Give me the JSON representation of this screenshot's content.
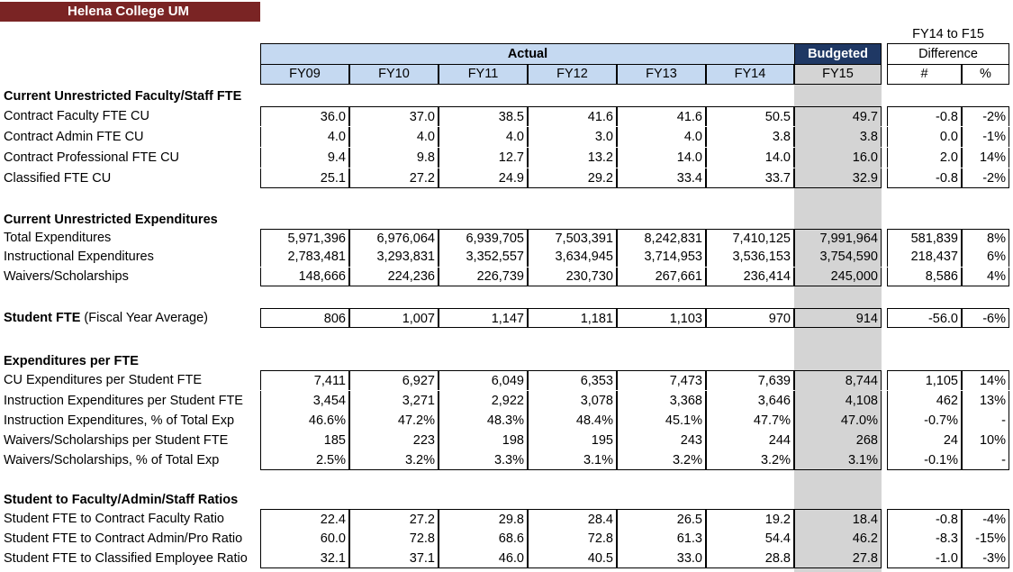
{
  "title": "Helena College UM",
  "header": {
    "actual_label": "Actual",
    "budgeted_label": "Budgeted",
    "diff_top": "FY14 to F15",
    "diff_label": "Difference",
    "columns": [
      "FY09",
      "FY10",
      "FY11",
      "FY12",
      "FY13",
      "FY14",
      "FY15"
    ],
    "diff_cols": [
      "#",
      "%"
    ]
  },
  "sections": [
    {
      "title": "Current Unrestricted Faculty/Staff FTE",
      "rows": [
        {
          "label": "Contract Faculty FTE CU",
          "values": [
            "36.0",
            "37.0",
            "38.5",
            "41.6",
            "41.6",
            "50.5",
            "49.7"
          ],
          "diff": [
            "-0.8",
            "-2%"
          ]
        },
        {
          "label": "Contract Admin FTE CU",
          "values": [
            "4.0",
            "4.0",
            "4.0",
            "3.0",
            "4.0",
            "3.8",
            "3.8"
          ],
          "diff": [
            "0.0",
            "-1%"
          ]
        },
        {
          "label": "Contract Professional FTE CU",
          "values": [
            "9.4",
            "9.8",
            "12.7",
            "13.2",
            "14.0",
            "14.0",
            "16.0"
          ],
          "diff": [
            "2.0",
            "14%"
          ]
        },
        {
          "label": "Classified FTE CU",
          "values": [
            "25.1",
            "27.2",
            "24.9",
            "29.2",
            "33.4",
            "33.7",
            "32.9"
          ],
          "diff": [
            "-0.8",
            "-2%"
          ]
        }
      ]
    },
    {
      "title": "Current Unrestricted Expenditures",
      "rows": [
        {
          "label": "Total Expenditures",
          "values": [
            "5,971,396",
            "6,976,064",
            "6,939,705",
            "7,503,391",
            "8,242,831",
            "7,410,125",
            "7,991,964"
          ],
          "diff": [
            "581,839",
            "8%"
          ]
        },
        {
          "label": "Instructional Expenditures",
          "values": [
            "2,783,481",
            "3,293,831",
            "3,352,557",
            "3,634,945",
            "3,714,953",
            "3,536,153",
            "3,754,590"
          ],
          "diff": [
            "218,437",
            "6%"
          ]
        },
        {
          "label": "Waivers/Scholarships",
          "values": [
            "148,666",
            "224,236",
            "226,739",
            "230,730",
            "267,661",
            "236,414",
            "245,000"
          ],
          "diff": [
            "8,586",
            "4%"
          ]
        }
      ]
    },
    {
      "title": "",
      "rows": [
        {
          "label": "Student FTE",
          "label_suffix": " (Fiscal Year Average)",
          "values": [
            "806",
            "1,007",
            "1,147",
            "1,181",
            "1,103",
            "970",
            "914"
          ],
          "diff": [
            "-56.0",
            "-6%"
          ]
        }
      ]
    },
    {
      "title": "Expenditures per FTE",
      "rows": [
        {
          "label": "CU Expenditures per Student FTE",
          "values": [
            "7,411",
            "6,927",
            "6,049",
            "6,353",
            "7,473",
            "7,639",
            "8,744"
          ],
          "diff": [
            "1,105",
            "14%"
          ]
        },
        {
          "label": "Instruction Expenditures per Student FTE",
          "values": [
            "3,454",
            "3,271",
            "2,922",
            "3,078",
            "3,368",
            "3,646",
            "4,108"
          ],
          "diff": [
            "462",
            "13%"
          ]
        },
        {
          "label": "Instruction Expenditures, % of Total Exp",
          "values": [
            "46.6%",
            "47.2%",
            "48.3%",
            "48.4%",
            "45.1%",
            "47.7%",
            "47.0%"
          ],
          "diff": [
            "-0.7%",
            "-"
          ]
        },
        {
          "label": "Waivers/Scholarships per Student FTE",
          "values": [
            "185",
            "223",
            "198",
            "195",
            "243",
            "244",
            "268"
          ],
          "diff": [
            "24",
            "10%"
          ]
        },
        {
          "label": "Waivers/Scholarships, % of Total Exp",
          "values": [
            "2.5%",
            "3.2%",
            "3.3%",
            "3.1%",
            "3.2%",
            "3.2%",
            "3.1%"
          ],
          "diff": [
            "-0.1%",
            "-"
          ]
        }
      ]
    },
    {
      "title": "Student to Faculty/Admin/Staff Ratios",
      "rows": [
        {
          "label": "Student FTE to Contract Faculty Ratio",
          "values": [
            "22.4",
            "27.2",
            "29.8",
            "28.4",
            "26.5",
            "19.2",
            "18.4"
          ],
          "diff": [
            "-0.8",
            "-4%"
          ]
        },
        {
          "label": "Student FTE to Contract Admin/Pro Ratio",
          "values": [
            "60.0",
            "72.8",
            "68.6",
            "72.8",
            "61.3",
            "54.4",
            "46.2"
          ],
          "diff": [
            "-8.3",
            "-15%"
          ]
        },
        {
          "label": "Student FTE to Classified Employee Ratio",
          "values": [
            "32.1",
            "37.1",
            "46.0",
            "40.5",
            "33.0",
            "28.8",
            "27.8"
          ],
          "diff": [
            "-1.0",
            "-3%"
          ]
        }
      ]
    }
  ]
}
